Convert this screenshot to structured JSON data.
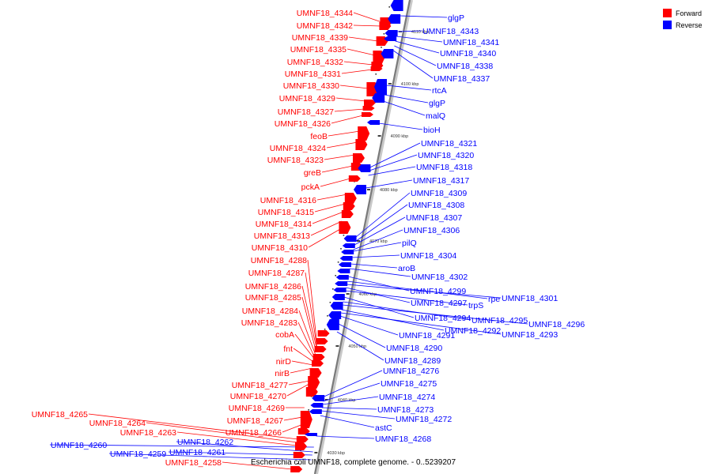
{
  "legend": {
    "forward_label": "Forward",
    "reverse_label": "Reverse",
    "forward_color": "#ff0000",
    "reverse_color": "#0000ff"
  },
  "caption": "Escherichia coli UMNF18, complete genome. - 0..5239207",
  "ticks": [
    "4110 kbp",
    "4100 kbp",
    "4090 kbp",
    "4080 kbp",
    "4070 kbp",
    "4060 kbp",
    "4050 kbp",
    "4040 kbp",
    "4030 kbp"
  ],
  "forward_genes": [
    "UMNF18_4344",
    "UMNF18_4342",
    "UMNF18_4339",
    "UMNF18_4335",
    "UMNF18_4332",
    "UMNF18_4331",
    "UMNF18_4330",
    "UMNF18_4329",
    "UMNF18_4327",
    "UMNF18_4326",
    "feoB",
    "UMNF18_4324",
    "UMNF18_4323",
    "greB",
    "pckA",
    "UMNF18_4316",
    "UMNF18_4315",
    "UMNF18_4314",
    "UMNF18_4313",
    "UMNF18_4310",
    "UMNF18_4288",
    "UMNF18_4287",
    "UMNF18_4286",
    "UMNF18_4285",
    "UMNF18_4284",
    "UMNF18_4283",
    "cobA",
    "fnt",
    "nirD",
    "nirB",
    "UMNF18_4277",
    "UMNF18_4270",
    "UMNF18_4269",
    "UMNF18_4267",
    "UMNF18_4266",
    "UMNF18_4265",
    "UMNF18_4264",
    "UMNF18_4263",
    "UMNF18_4258"
  ],
  "reverse_genes": [
    "glgP",
    "UMNF18_4343",
    "UMNF18_4341",
    "UMNF18_4340",
    "UMNF18_4338",
    "UMNF18_4337",
    "rtcA",
    "glgP",
    "malQ",
    "bioH",
    "UMNF18_4321",
    "UMNF18_4320",
    "UMNF18_4318",
    "UMNF18_4317",
    "UMNF18_4309",
    "UMNF18_4308",
    "UMNF18_4307",
    "UMNF18_4306",
    "pilQ",
    "UMNF18_4304",
    "aroB",
    "UMNF18_4302",
    "UMNF18_4299",
    "rpe",
    "UMNF18_4301",
    "UMNF18_4297",
    "trpS",
    "UMNF18_4294",
    "UMNF18_4295",
    "UMNF18_4296",
    "UMNF18_4292",
    "UMNF18_4293",
    "UMNF18_4291",
    "UMNF18_4290",
    "UMNF18_4289",
    "UMNF18_4276",
    "UMNF18_4275",
    "UMNF18_4274",
    "UMNF18_4273",
    "UMNF18_4272",
    "astC",
    "UMNF18_4268",
    "UMNF18_4262",
    "UMNF18_4260",
    "UMNF18_4261",
    "UMNF18_4259"
  ]
}
